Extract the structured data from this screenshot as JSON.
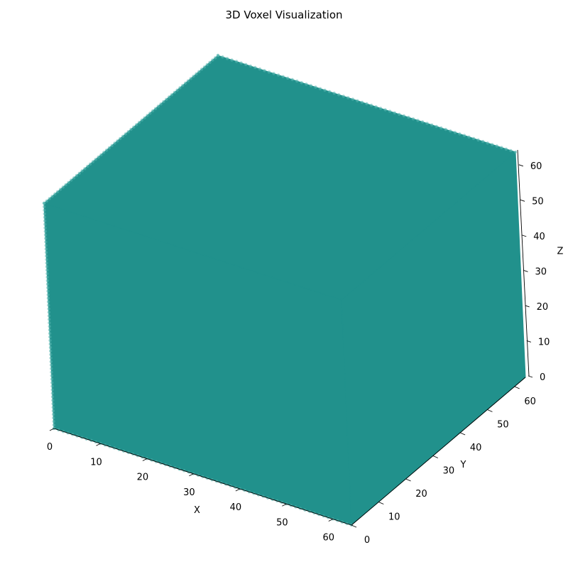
{
  "chart_data": {
    "type": "voxel",
    "title": "3D Voxel Visualization",
    "xlabel": "X",
    "ylabel": "Y",
    "zlabel": "Z",
    "x_ticks": [
      "0",
      "10",
      "20",
      "30",
      "40",
      "50",
      "60"
    ],
    "y_ticks": [
      "0",
      "10",
      "20",
      "30",
      "40",
      "50",
      "60"
    ],
    "z_ticks": [
      "0",
      "10",
      "20",
      "30",
      "40",
      "50",
      "60"
    ],
    "xlim": [
      0,
      64
    ],
    "ylim": [
      0,
      64
    ],
    "zlim": [
      0,
      64
    ],
    "filled_extent": {
      "x": [
        0,
        64
      ],
      "y": [
        0,
        64
      ],
      "z": [
        0,
        64
      ]
    },
    "voxel_color": "#21918c",
    "grid": false
  }
}
